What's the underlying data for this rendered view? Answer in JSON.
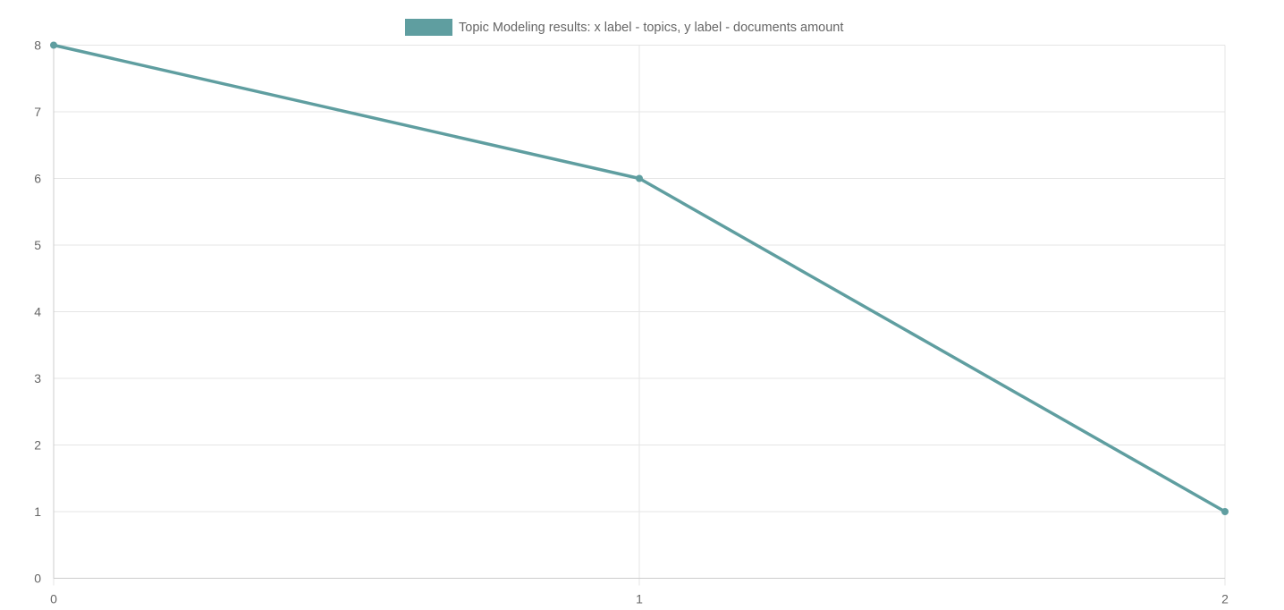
{
  "chart_data": {
    "type": "line",
    "title": "",
    "xlabel": "",
    "ylabel": "",
    "x": [
      0,
      1,
      2
    ],
    "xticks": [
      "0",
      "1",
      "2"
    ],
    "xlim": [
      0,
      2
    ],
    "yticks": [
      "0",
      "1",
      "2",
      "3",
      "4",
      "5",
      "6",
      "7",
      "8"
    ],
    "ylim": [
      0,
      8
    ],
    "grid": true,
    "legend_position": "top-center",
    "series": [
      {
        "name": "Topic Modeling results: x label - topics, y label - documents amount",
        "values": [
          8,
          6,
          1
        ],
        "color": "#5f9ea0"
      }
    ],
    "colors": {
      "grid": "#e5e5e5",
      "axis": "#cccccc",
      "text": "#666666"
    }
  }
}
